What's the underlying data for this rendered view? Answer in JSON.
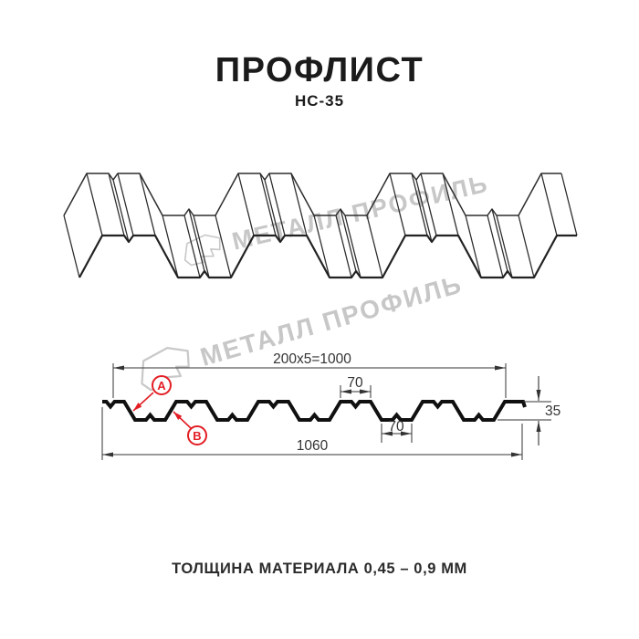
{
  "header": {
    "title": "ПРОФЛИСТ",
    "subtitle": "НС-35"
  },
  "watermark": {
    "text": "МЕТАЛЛ ПРОФИЛЬ",
    "color": "#c7c7c7",
    "logo_icon": "metall-profil-logo"
  },
  "section": {
    "dim_top": "200x5=1000",
    "dim_crest": "70",
    "dim_valley": "70",
    "dim_height": "35",
    "dim_total": "1060",
    "label_a": "A",
    "label_b": "B",
    "accent_color": "#e31e24",
    "line_color": "#333333",
    "profile_color": "#101010"
  },
  "footer": {
    "thickness_label": "ТОЛЩИНА МАТЕРИАЛА 0,45 – 0,9 ММ"
  }
}
